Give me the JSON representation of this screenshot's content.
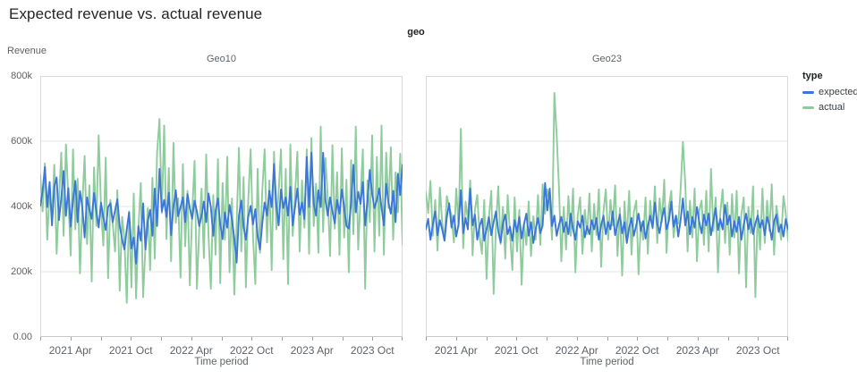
{
  "title": "Expected revenue vs. actual revenue",
  "facet_header": "geo",
  "y_axis": {
    "label": "Revenue",
    "ticks": [
      "800k",
      "600k",
      "400k",
      "200k",
      "0.00"
    ]
  },
  "x_axis": {
    "label": "Time period",
    "ticks": [
      "2021 Apr",
      "2021 Oct",
      "2022 Apr",
      "2022 Oct",
      "2023 Apr",
      "2023 Oct"
    ],
    "tick_month_index": [
      3,
      9,
      15,
      21,
      27,
      33
    ],
    "minor_tick_every_months": 3,
    "domain_months": 36
  },
  "legend": {
    "title": "type",
    "items": [
      {
        "label": "expected",
        "color": "#3b77d8"
      },
      {
        "label": "actual",
        "color": "#8ecb9d"
      }
    ]
  },
  "colors": {
    "expected": "#3b77d8",
    "actual": "#8ecb9d",
    "grid": "#e4e4e4",
    "border": "#dadada",
    "axis_line": "#c9c9c9",
    "text_dark": "#202124",
    "text_gray": "#5f6368"
  },
  "chart_data": [
    {
      "type": "line",
      "facet": "Geo10",
      "x_start": "2021-01",
      "x_end": "2023-12",
      "interval": "weekly",
      "ylim_k": [
        0,
        800
      ],
      "grid_k": [
        200,
        400,
        600
      ],
      "series": [
        {
          "name": "expected",
          "color": "#3b77d8",
          "values_k": [
            402,
            447,
            521,
            398,
            475,
            342,
            461,
            489,
            358,
            426,
            509,
            371,
            456,
            338,
            419,
            478,
            352,
            447,
            398,
            305,
            428,
            392,
            362,
            441,
            385,
            336,
            412,
            366,
            328,
            398,
            410,
            352,
            388,
            422,
            340,
            300,
            268,
            330,
            382,
            271,
            305,
            225,
            340,
            295,
            410,
            268,
            355,
            390,
            310,
            455,
            340,
            515,
            385,
            420,
            368,
            442,
            312,
            398,
            450,
            370,
            398,
            428,
            352,
            438,
            395,
            362,
            418,
            385,
            340,
            372,
            415,
            352,
            440,
            398,
            310,
            388,
            425,
            345,
            300,
            382,
            335,
            405,
            360,
            302,
            228,
            372,
            418,
            338,
            298,
            368,
            402,
            345,
            392,
            310,
            268,
            348,
            412,
            372,
            448,
            398,
            530,
            405,
            342,
            452,
            395,
            428,
            372,
            460,
            342,
            398,
            455,
            375,
            412,
            362,
            552,
            398,
            565,
            410,
            372,
            450,
            398,
            565,
            420,
            372,
            428,
            385,
            348,
            420,
            378,
            452,
            398,
            340,
            332,
            412,
            528,
            382,
            445,
            408,
            475,
            342,
            418,
            512,
            438,
            395,
            420,
            455,
            398,
            342,
            470,
            412,
            378,
            448,
            352,
            500,
            435,
            528
          ]
        },
        {
          "name": "actual",
          "color": "#8ecb9d",
          "values_k": [
            498,
            385,
            532,
            298,
            448,
            362,
            528,
            255,
            418,
            565,
            310,
            590,
            430,
            250,
            575,
            330,
            485,
            195,
            405,
            555,
            285,
            465,
            170,
            520,
            340,
            618,
            400,
            280,
            550,
            180,
            420,
            348,
            262,
            450,
            142,
            368,
            298,
            105,
            385,
            152,
            440,
            118,
            330,
            472,
            122,
            280,
            395,
            205,
            488,
            240,
            565,
            668,
            380,
            648,
            300,
            518,
            232,
            595,
            350,
            425,
            182,
            530,
            278,
            448,
            158,
            380,
            540,
            148,
            330,
            455,
            242,
            560,
            310,
            148,
            435,
            252,
            545,
            165,
            472,
            298,
            552,
            198,
            425,
            130,
            345,
            580,
            262,
            490,
            152,
            420,
            575,
            310,
            162,
            515,
            258,
            448,
            575,
            290,
            480,
            205,
            568,
            330,
            448,
            575,
            238,
            515,
            162,
            590,
            310,
            435,
            568,
            262,
            480,
            335,
            575,
            255,
            610,
            340,
            470,
            258,
            645,
            322,
            548,
            425,
            248,
            588,
            332,
            505,
            252,
            578,
            305,
            482,
            198,
            542,
            315,
            645,
            268,
            425,
            575,
            148,
            480,
            352,
            618,
            262,
            552,
            310,
            648,
            252,
            565,
            395,
            582,
            298,
            505,
            382,
            562,
            285
          ]
        }
      ]
    },
    {
      "type": "line",
      "facet": "Geo23",
      "x_start": "2021-01",
      "x_end": "2023-12",
      "interval": "weekly",
      "ylim_k": [
        0,
        800
      ],
      "grid_k": [
        200,
        400,
        600
      ],
      "series": [
        {
          "name": "expected",
          "color": "#3b77d8",
          "values_k": [
            330,
            362,
            298,
            345,
            385,
            312,
            358,
            330,
            295,
            368,
            410,
            335,
            372,
            308,
            345,
            450,
            318,
            365,
            330,
            455,
            342,
            375,
            298,
            340,
            362,
            295,
            330,
            368,
            312,
            352,
            385,
            325,
            290,
            348,
            375,
            315,
            338,
            295,
            358,
            322,
            368,
            302,
            345,
            378,
            310,
            352,
            288,
            330,
            365,
            318,
            342,
            472,
            388,
            455,
            340,
            372,
            310,
            345,
            368,
            322,
            352,
            315,
            378,
            330,
            298,
            355,
            335,
            372,
            305,
            340,
            315,
            358,
            330,
            365,
            298,
            342,
            372,
            315,
            352,
            330,
            385,
            312,
            345,
            375,
            318,
            352,
            288,
            335,
            365,
            310,
            342,
            378,
            325,
            355,
            302,
            340,
            372,
            335,
            412,
            348,
            318,
            365,
            395,
            330,
            355,
            415,
            338,
            372,
            308,
            358,
            425,
            342,
            385,
            315,
            368,
            335,
            398,
            352,
            318,
            375,
            342,
            378,
            312,
            355,
            395,
            328,
            362,
            330,
            405,
            345,
            372,
            308,
            355,
            322,
            368,
            298,
            345,
            378,
            330,
            362,
            315,
            348,
            372,
            335,
            358,
            312,
            368,
            342,
            298,
            355,
            375,
            322,
            345,
            308,
            362,
            330
          ]
        },
        {
          "name": "actual",
          "color": "#8ecb9d",
          "values_k": [
            445,
            380,
            478,
            310,
            420,
            265,
            458,
            352,
            298,
            432,
            398,
            375,
            290,
            455,
            338,
            638,
            272,
            415,
            360,
            480,
            250,
            390,
            435,
            310,
            255,
            420,
            178,
            365,
            448,
            132,
            340,
            462,
            285,
            398,
            240,
            435,
            318,
            205,
            428,
            262,
            390,
            160,
            345,
            282,
            415,
            248,
            370,
            298,
            435,
            282,
            468,
            378,
            452,
            412,
            298,
            748,
            618,
            455,
            232,
            398,
            268,
            432,
            310,
            455,
            198,
            372,
            428,
            255,
            390,
            315,
            440,
            262,
            408,
            312,
            452,
            215,
            385,
            452,
            298,
            420,
            342,
            465,
            248,
            395,
            188,
            415,
            302,
            448,
            252,
            382,
            418,
            192,
            352,
            298,
            428,
            255,
            418,
            332,
            462,
            288,
            425,
            352,
            482,
            258,
            398,
            448,
            305,
            372,
            348,
            452,
            598,
            472,
            262,
            418,
            305,
            455,
            232,
            388,
            418,
            282,
            448,
            262,
            515,
            325,
            428,
            198,
            382,
            452,
            288,
            412,
            252,
            438,
            305,
            448,
            195,
            375,
            428,
            152,
            398,
            318,
            462,
            122,
            388,
            268,
            455,
            288,
            418,
            325,
            468,
            252,
            402,
            352,
            298,
            432,
            378,
            295
          ]
        }
      ]
    }
  ]
}
